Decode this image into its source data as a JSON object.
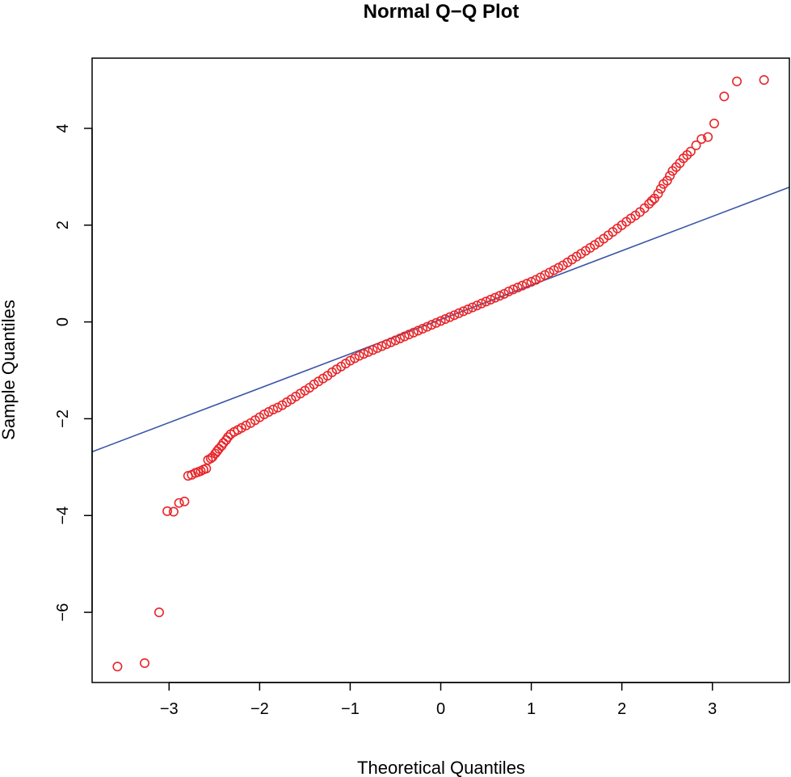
{
  "chart_data": {
    "type": "scatter",
    "title": "Normal Q−Q Plot",
    "xlabel": "Theoretical Quantiles",
    "ylabel": "Sample Quantiles",
    "xlim": [
      -3.85,
      3.85
    ],
    "ylim": [
      -7.45,
      5.45
    ],
    "x_ticks": [
      -3,
      -2,
      -1,
      0,
      1,
      2,
      3
    ],
    "x_tick_labels": [
      "−3",
      "−2",
      "−1",
      "0",
      "1",
      "2",
      "3"
    ],
    "y_ticks": [
      -6,
      -4,
      -2,
      0,
      2,
      4
    ],
    "y_tick_labels": [
      "−6",
      "−4",
      "−2",
      "0",
      "2",
      "4"
    ],
    "grid": false,
    "legend": "none",
    "point_color": "#e8262a",
    "line_color": "#3b55a8",
    "reference_line": {
      "intercept": 0.05,
      "slope": 0.71
    },
    "series": [
      {
        "values": [
          [
            -3.57,
            -7.12
          ],
          [
            -3.27,
            -7.05
          ],
          [
            -3.11,
            -6.0
          ],
          [
            -3.02,
            -3.91
          ],
          [
            -2.95,
            -3.92
          ],
          [
            -2.89,
            -3.74
          ],
          [
            -2.83,
            -3.71
          ],
          [
            -2.79,
            -3.18
          ],
          [
            -2.75,
            -3.16
          ],
          [
            -2.71,
            -3.12
          ],
          [
            -2.68,
            -3.1
          ],
          [
            -2.65,
            -3.08
          ],
          [
            -2.62,
            -3.05
          ],
          [
            -2.59,
            -3.03
          ],
          [
            -2.57,
            -2.85
          ],
          [
            -2.54,
            -2.82
          ],
          [
            -2.52,
            -2.79
          ],
          [
            -2.49,
            -2.72
          ],
          [
            -2.47,
            -2.67
          ],
          [
            -2.45,
            -2.62
          ],
          [
            -2.42,
            -2.56
          ],
          [
            -2.4,
            -2.5
          ],
          [
            -2.37,
            -2.44
          ],
          [
            -2.35,
            -2.38
          ],
          [
            -2.32,
            -2.32
          ],
          [
            -2.28,
            -2.27
          ],
          [
            -2.24,
            -2.23
          ],
          [
            -2.2,
            -2.19
          ],
          [
            -2.15,
            -2.14
          ],
          [
            -2.1,
            -2.09
          ],
          [
            -2.05,
            -2.03
          ],
          [
            -2.0,
            -1.97
          ],
          [
            -1.95,
            -1.91
          ],
          [
            -1.9,
            -1.86
          ],
          [
            -1.85,
            -1.81
          ],
          [
            -1.8,
            -1.77
          ],
          [
            -1.75,
            -1.72
          ],
          [
            -1.7,
            -1.66
          ],
          [
            -1.65,
            -1.6
          ],
          [
            -1.6,
            -1.54
          ],
          [
            -1.55,
            -1.48
          ],
          [
            -1.5,
            -1.42
          ],
          [
            -1.45,
            -1.36
          ],
          [
            -1.4,
            -1.29
          ],
          [
            -1.35,
            -1.23
          ],
          [
            -1.3,
            -1.17
          ],
          [
            -1.25,
            -1.11
          ],
          [
            -1.2,
            -1.04
          ],
          [
            -1.15,
            -0.98
          ],
          [
            -1.1,
            -0.92
          ],
          [
            -1.05,
            -0.86
          ],
          [
            -1.0,
            -0.8
          ],
          [
            -0.95,
            -0.75
          ],
          [
            -0.9,
            -0.7
          ],
          [
            -0.85,
            -0.66
          ],
          [
            -0.8,
            -0.62
          ],
          [
            -0.75,
            -0.58
          ],
          [
            -0.7,
            -0.54
          ],
          [
            -0.65,
            -0.5
          ],
          [
            -0.6,
            -0.46
          ],
          [
            -0.55,
            -0.42
          ],
          [
            -0.5,
            -0.38
          ],
          [
            -0.45,
            -0.34
          ],
          [
            -0.4,
            -0.3
          ],
          [
            -0.35,
            -0.26
          ],
          [
            -0.3,
            -0.22
          ],
          [
            -0.25,
            -0.18
          ],
          [
            -0.2,
            -0.14
          ],
          [
            -0.15,
            -0.1
          ],
          [
            -0.1,
            -0.06
          ],
          [
            -0.05,
            -0.02
          ],
          [
            0.0,
            0.02
          ],
          [
            0.05,
            0.06
          ],
          [
            0.1,
            0.1
          ],
          [
            0.15,
            0.14
          ],
          [
            0.2,
            0.18
          ],
          [
            0.25,
            0.22
          ],
          [
            0.3,
            0.26
          ],
          [
            0.35,
            0.3
          ],
          [
            0.4,
            0.34
          ],
          [
            0.45,
            0.38
          ],
          [
            0.5,
            0.42
          ],
          [
            0.55,
            0.46
          ],
          [
            0.6,
            0.5
          ],
          [
            0.65,
            0.54
          ],
          [
            0.7,
            0.58
          ],
          [
            0.75,
            0.63
          ],
          [
            0.8,
            0.67
          ],
          [
            0.85,
            0.71
          ],
          [
            0.9,
            0.75
          ],
          [
            0.95,
            0.79
          ],
          [
            1.0,
            0.83
          ],
          [
            1.05,
            0.87
          ],
          [
            1.1,
            0.92
          ],
          [
            1.15,
            0.97
          ],
          [
            1.2,
            1.02
          ],
          [
            1.25,
            1.07
          ],
          [
            1.3,
            1.12
          ],
          [
            1.35,
            1.17
          ],
          [
            1.4,
            1.23
          ],
          [
            1.45,
            1.29
          ],
          [
            1.5,
            1.35
          ],
          [
            1.55,
            1.41
          ],
          [
            1.6,
            1.47
          ],
          [
            1.65,
            1.53
          ],
          [
            1.7,
            1.59
          ],
          [
            1.75,
            1.65
          ],
          [
            1.8,
            1.72
          ],
          [
            1.85,
            1.79
          ],
          [
            1.9,
            1.86
          ],
          [
            1.95,
            1.93
          ],
          [
            2.0,
            2.0
          ],
          [
            2.05,
            2.07
          ],
          [
            2.1,
            2.14
          ],
          [
            2.15,
            2.2
          ],
          [
            2.2,
            2.27
          ],
          [
            2.25,
            2.35
          ],
          [
            2.3,
            2.44
          ],
          [
            2.33,
            2.5
          ],
          [
            2.36,
            2.55
          ],
          [
            2.4,
            2.65
          ],
          [
            2.43,
            2.75
          ],
          [
            2.46,
            2.85
          ],
          [
            2.5,
            2.92
          ],
          [
            2.53,
            3.02
          ],
          [
            2.56,
            3.12
          ],
          [
            2.6,
            3.2
          ],
          [
            2.64,
            3.28
          ],
          [
            2.68,
            3.38
          ],
          [
            2.72,
            3.45
          ],
          [
            2.76,
            3.52
          ],
          [
            2.82,
            3.65
          ],
          [
            2.88,
            3.78
          ],
          [
            2.95,
            3.82
          ],
          [
            3.02,
            4.1
          ],
          [
            3.13,
            4.66
          ],
          [
            3.27,
            4.97
          ],
          [
            3.57,
            5.0
          ]
        ]
      }
    ]
  }
}
